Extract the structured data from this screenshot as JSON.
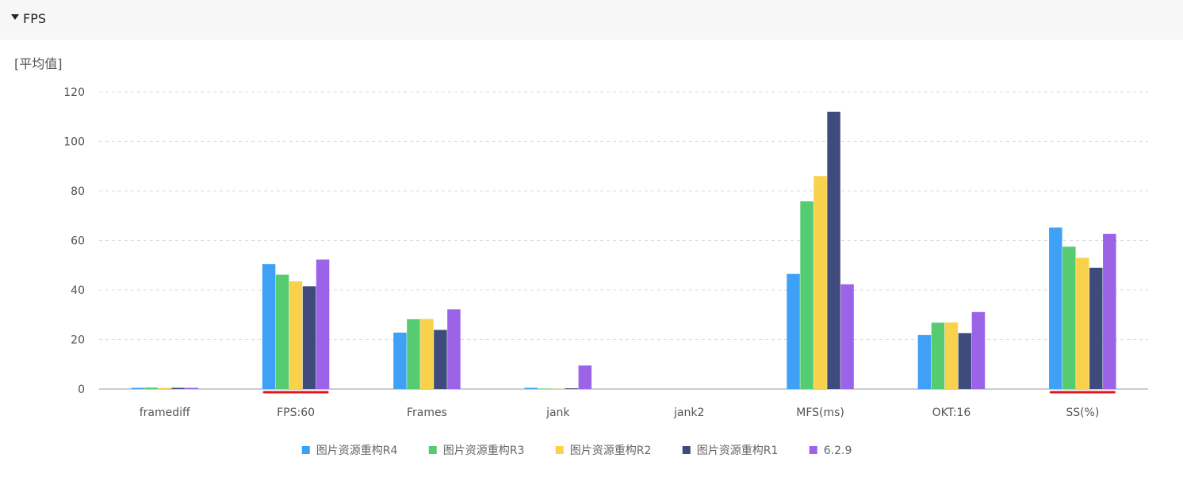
{
  "header": {
    "title": "FPS",
    "caret_icon": "caret-down-icon"
  },
  "subtitle": "[平均值]",
  "chart_data": {
    "type": "bar",
    "categories": [
      "framediff",
      "FPS:60",
      "Frames",
      "jank",
      "jank2",
      "MFS(ms)",
      "OKT:16",
      "SS(%)"
    ],
    "yticks": [
      "0",
      "20",
      "40",
      "60",
      "80",
      "100",
      "120"
    ],
    "ylim": [
      0,
      120
    ],
    "grid": true,
    "legend_position": "bottom",
    "highlighted_categories": [
      "FPS:60",
      "SS(%)"
    ],
    "highlight_color": "#e0161d",
    "series": [
      {
        "name": "图片资源重构R4",
        "color": "#3fa0f7",
        "values": [
          0.5,
          50.5,
          22.8,
          0.5,
          0,
          46.5,
          21.8,
          65.2
        ]
      },
      {
        "name": "图片资源重构R3",
        "color": "#55cb72",
        "values": [
          0.6,
          46.2,
          28.2,
          0.2,
          0,
          75.8,
          26.8,
          57.5
        ]
      },
      {
        "name": "图片资源重构R2",
        "color": "#f8d24c",
        "values": [
          0.5,
          43.5,
          28.3,
          0.1,
          0,
          86.0,
          26.9,
          53.0
        ]
      },
      {
        "name": "图片资源重构R1",
        "color": "#3f4b7d",
        "values": [
          0.5,
          41.5,
          23.9,
          0.3,
          0,
          112.0,
          22.6,
          49.0
        ]
      },
      {
        "name": "6.2.9",
        "color": "#9b64e8",
        "values": [
          0.5,
          52.3,
          32.2,
          9.5,
          0,
          42.3,
          31.1,
          62.7
        ]
      }
    ]
  }
}
